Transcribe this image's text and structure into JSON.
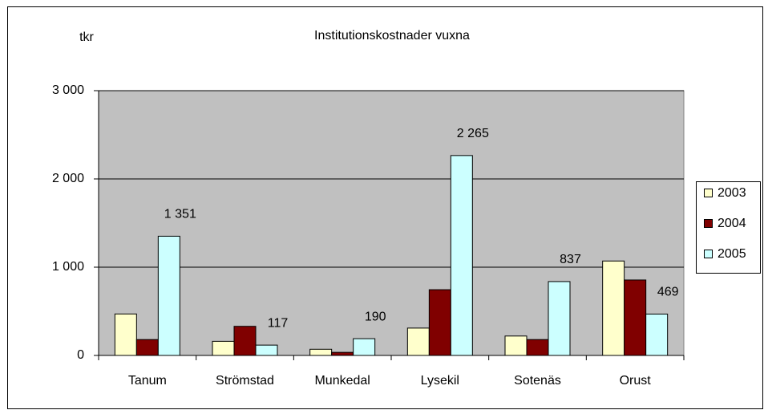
{
  "chart_data": {
    "type": "bar",
    "title": "Institutionskostnader vuxna",
    "y_label": "tkr",
    "categories": [
      "Tanum",
      "Strömstad",
      "Munkedal",
      "Lysekil",
      "Sotenäs",
      "Orust"
    ],
    "series": [
      {
        "name": "2003",
        "color": "#ffffcc",
        "values": [
          470,
          160,
          70,
          310,
          220,
          1070
        ]
      },
      {
        "name": "2004",
        "color": "#800000",
        "values": [
          180,
          330,
          35,
          745,
          180,
          855
        ]
      },
      {
        "name": "2005",
        "color": "#ccffff",
        "values": [
          1351,
          117,
          190,
          2265,
          837,
          469
        ],
        "value_labels": [
          "1 351",
          "117",
          "190",
          "2 265",
          "837",
          "469"
        ]
      }
    ],
    "ylim": [
      0,
      3000
    ],
    "yticks": [
      0,
      {
        "value": 1000,
        "label": "1 000"
      },
      {
        "value": 2000,
        "label": "2 000"
      },
      {
        "value": 3000,
        "label": "3 000"
      }
    ],
    "grid": true,
    "legend": "right",
    "plot_background": "#c0c0c0"
  }
}
